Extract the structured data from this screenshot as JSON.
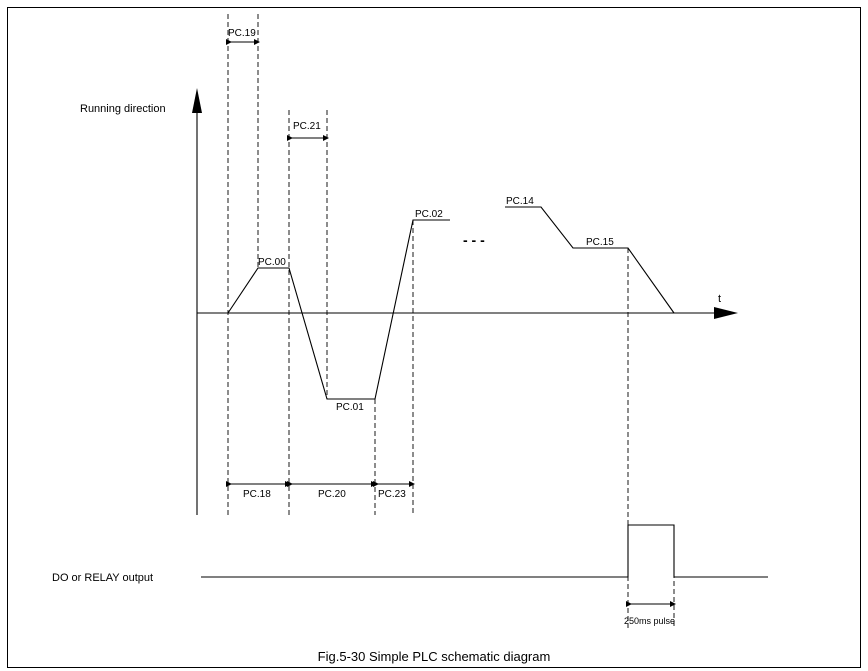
{
  "diagram": {
    "y_axis_label": "Running direction",
    "x_axis_label": "t",
    "ellipsis": "- - -",
    "output_label": "DO or RELAY output",
    "caption": "Fig.5-30 Simple PLC schematic diagram",
    "segment_labels": {
      "pc00": "PC.00",
      "pc01": "PC.01",
      "pc02": "PC.02",
      "pc14": "PC.14",
      "pc15": "PC.15"
    },
    "time_labels": {
      "pc19": "PC.19",
      "pc21": "PC.21",
      "pc18": "PC.18",
      "pc20": "PC.20",
      "pc23": "PC.23",
      "pulse": "250ms pulse"
    }
  }
}
